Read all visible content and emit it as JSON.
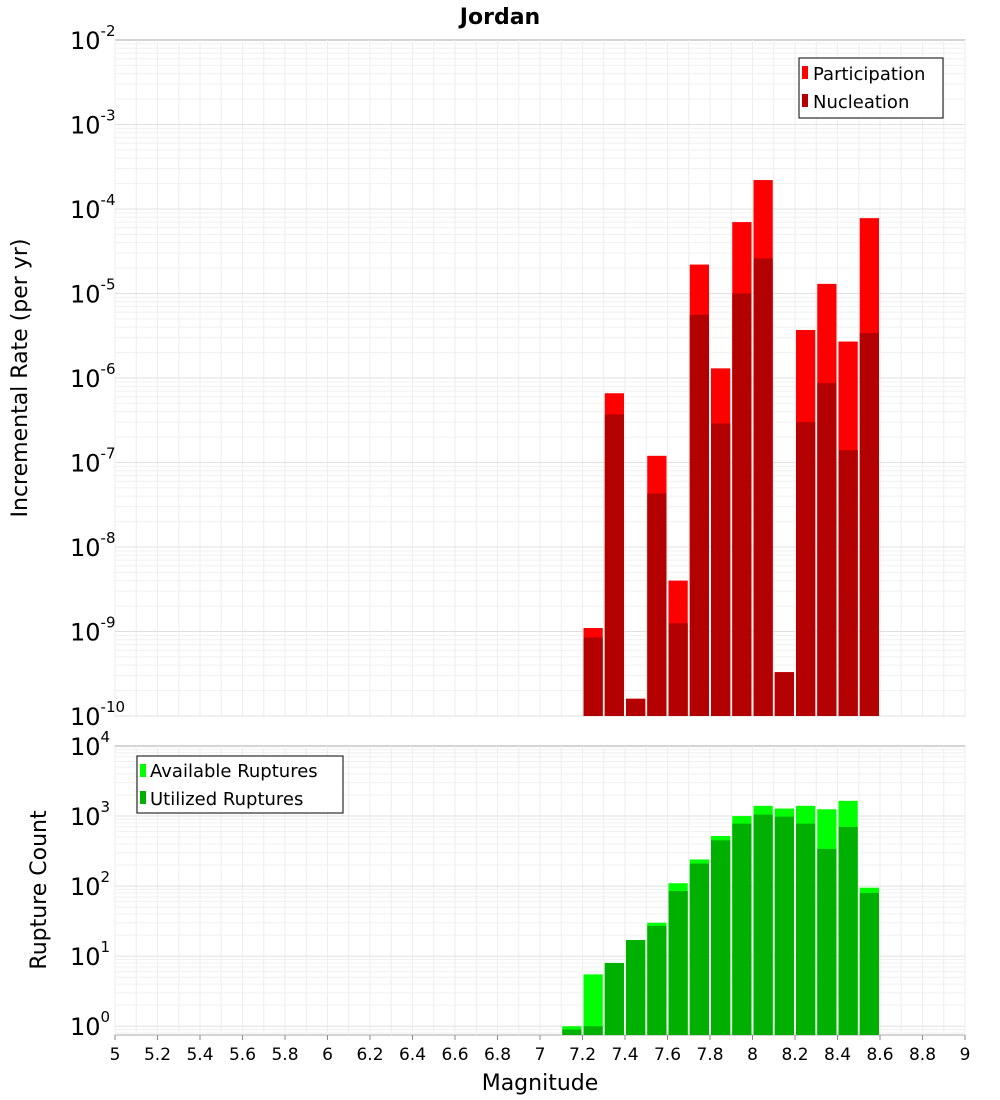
{
  "chart_data": [
    {
      "type": "bar",
      "title": "Jordan",
      "xlabel": "",
      "ylabel": "Incremental Rate (per yr)",
      "yscale": "log",
      "ylim": [
        1e-10,
        0.01
      ],
      "xlim": [
        5,
        9
      ],
      "bin_width": 0.1,
      "grid": true,
      "legend": "top-right",
      "y_ticks": [
        {
          "base": "10",
          "exp": "-10"
        },
        {
          "base": "10",
          "exp": "-9"
        },
        {
          "base": "10",
          "exp": "-8"
        },
        {
          "base": "10",
          "exp": "-7"
        },
        {
          "base": "10",
          "exp": "-6"
        },
        {
          "base": "10",
          "exp": "-5"
        },
        {
          "base": "10",
          "exp": "-4"
        },
        {
          "base": "10",
          "exp": "-3"
        },
        {
          "base": "10",
          "exp": "-2"
        }
      ],
      "series": [
        {
          "name": "Participation",
          "color": "#ff0000",
          "x": [
            7.25,
            7.35,
            7.45,
            7.55,
            7.65,
            7.75,
            7.85,
            7.95,
            8.05,
            8.15,
            8.25,
            8.35,
            8.45,
            8.55
          ],
          "values": [
            1.1e-09,
            6.6e-07,
            1.6e-10,
            1.2e-07,
            4e-09,
            2.2e-05,
            1.3e-06,
            7e-05,
            0.00022,
            3.3e-10,
            3.7e-06,
            1.3e-05,
            2.7e-06,
            7.8e-05
          ]
        },
        {
          "name": "Nucleation",
          "color": "#b30000",
          "x": [
            7.25,
            7.35,
            7.45,
            7.55,
            7.65,
            7.75,
            7.85,
            7.95,
            8.05,
            8.15,
            8.25,
            8.35,
            8.45,
            8.55
          ],
          "values": [
            8.5e-10,
            3.7e-07,
            1.6e-10,
            4.3e-08,
            1.25e-09,
            5.6e-06,
            2.9e-07,
            1e-05,
            2.6e-05,
            3.3e-10,
            3e-07,
            8.7e-07,
            1.4e-07,
            3.4e-06
          ]
        }
      ]
    },
    {
      "type": "bar",
      "title": "",
      "xlabel": "Magnitude",
      "ylabel": "Rupture Count",
      "yscale": "log",
      "ylim": [
        0.75,
        10000
      ],
      "xlim": [
        5,
        9
      ],
      "bin_width": 0.1,
      "grid": true,
      "legend": "top-left",
      "x_ticks": [
        "5",
        "5.2",
        "5.4",
        "5.6",
        "5.8",
        "6",
        "6.2",
        "6.4",
        "6.6",
        "6.8",
        "7",
        "7.2",
        "7.4",
        "7.6",
        "7.8",
        "8",
        "8.2",
        "8.4",
        "8.6",
        "8.8",
        "9"
      ],
      "y_ticks": [
        {
          "value": 1,
          "base": "10",
          "exp": "0"
        },
        {
          "value": 10,
          "base": "10",
          "exp": "1"
        },
        {
          "value": 100,
          "base": "10",
          "exp": "2"
        },
        {
          "value": 1000,
          "base": "10",
          "exp": "3"
        },
        {
          "value": 10000,
          "base": "10",
          "exp": "4"
        }
      ],
      "series": [
        {
          "name": "Available Ruptures",
          "color": "#00ff00",
          "x": [
            7.15,
            7.25,
            7.35,
            7.45,
            7.55,
            7.65,
            7.75,
            7.85,
            7.95,
            8.05,
            8.15,
            8.25,
            8.35,
            8.45,
            8.55
          ],
          "values": [
            1,
            5.5,
            8,
            17,
            30,
            110,
            240,
            520,
            1000,
            1400,
            1280,
            1400,
            1250,
            1650,
            95
          ]
        },
        {
          "name": "Utilized Ruptures",
          "color": "#00b000",
          "x": [
            7.15,
            7.25,
            7.35,
            7.45,
            7.55,
            7.65,
            7.75,
            7.85,
            7.95,
            8.05,
            8.15,
            8.25,
            8.35,
            8.45,
            8.55
          ],
          "values": [
            0.9,
            1,
            8,
            17,
            27,
            85,
            210,
            450,
            780,
            1050,
            980,
            780,
            340,
            700,
            80
          ]
        }
      ]
    }
  ]
}
